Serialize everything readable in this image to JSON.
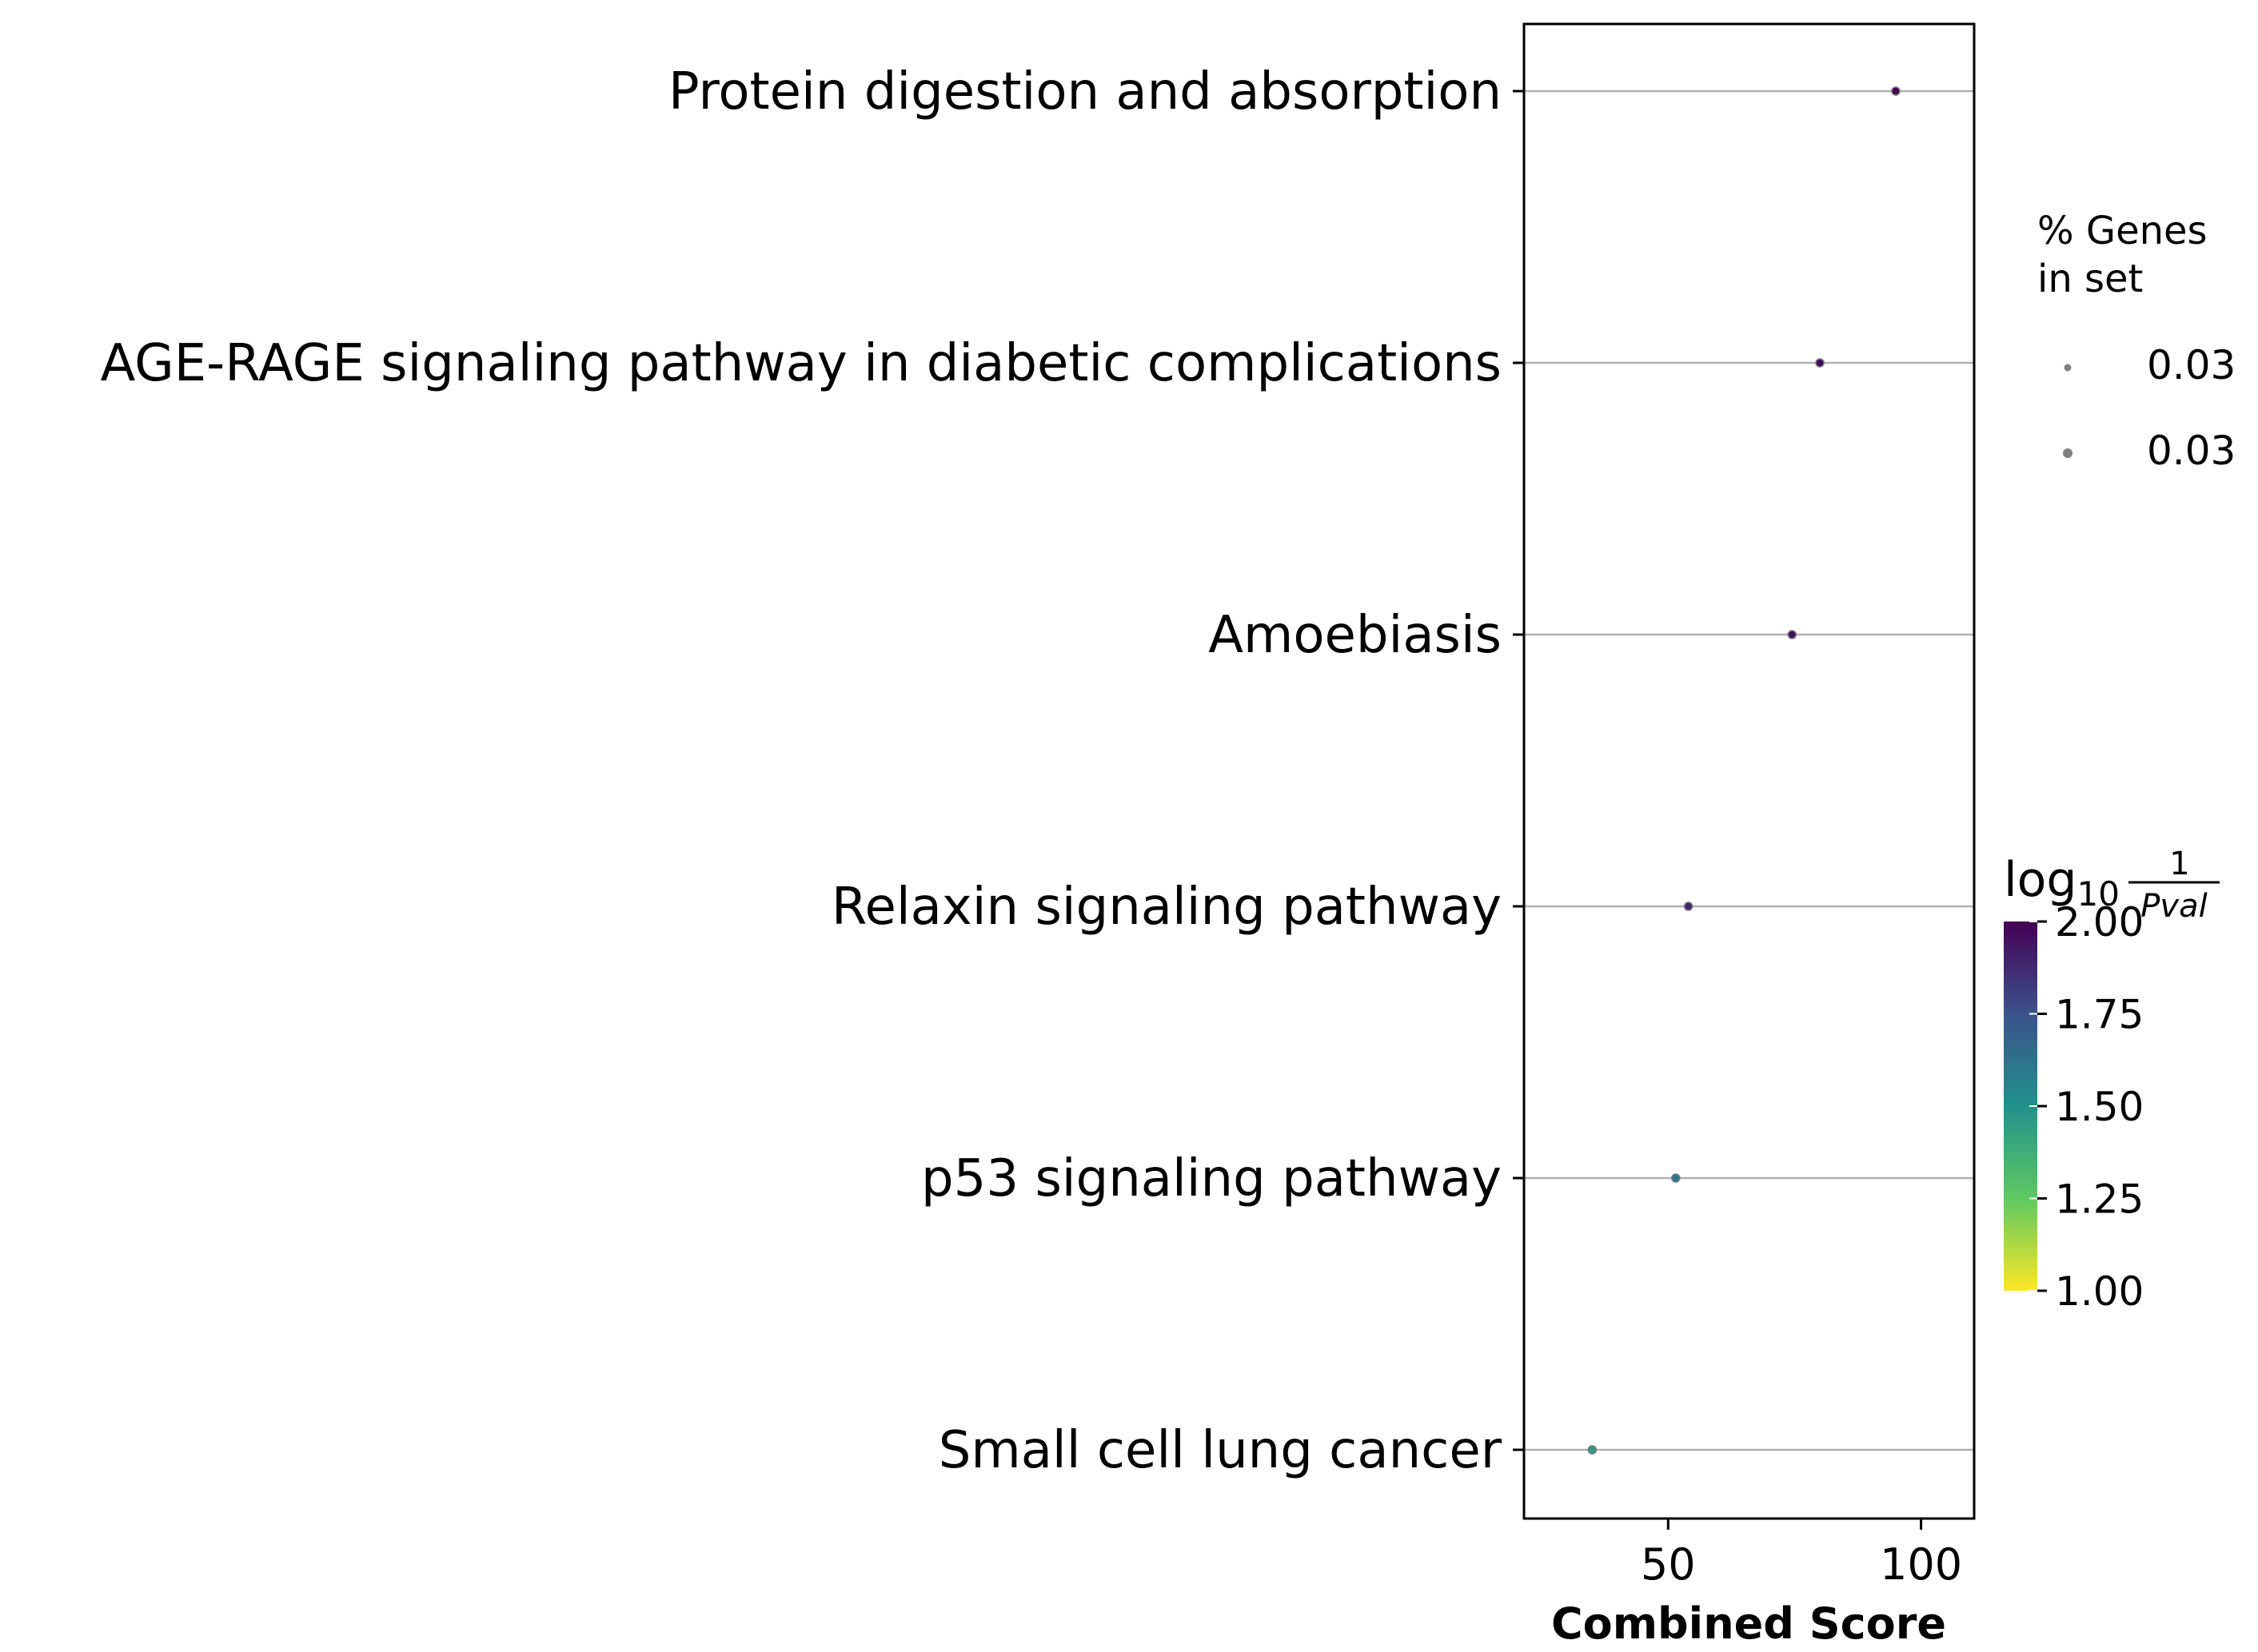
{
  "chart_data": {
    "type": "scatter",
    "title": "",
    "xlabel": "Combined Score",
    "ylabel": "",
    "xlim": [
      21.5,
      110.5
    ],
    "x_ticks": [
      50,
      100
    ],
    "x_tick_labels": [
      "50",
      "100"
    ],
    "grid": "horizontal lines at each category",
    "categories": [
      "Protein digestion and absorption",
      "AGE-RAGE signaling pathway in diabetic complications",
      "Amoebiasis",
      "Relaxin signaling pathway",
      "p53 signaling pathway",
      "Small cell lung cancer"
    ],
    "points": [
      {
        "term": "Protein digestion and absorption",
        "combined_score": 95,
        "neg_log10_pval": 2.0,
        "genes_in_set": 0.03
      },
      {
        "term": "AGE-RAGE signaling pathway in diabetic complications",
        "combined_score": 80,
        "neg_log10_pval": 1.97,
        "genes_in_set": 0.03
      },
      {
        "term": "Amoebiasis",
        "combined_score": 74.5,
        "neg_log10_pval": 1.95,
        "genes_in_set": 0.03
      },
      {
        "term": "Relaxin signaling pathway",
        "combined_score": 54,
        "neg_log10_pval": 1.88,
        "genes_in_set": 0.03
      },
      {
        "term": "p53 signaling pathway",
        "combined_score": 51.5,
        "neg_log10_pval": 1.6,
        "genes_in_set": 0.03
      },
      {
        "term": "Small cell lung cancer",
        "combined_score": 35,
        "neg_log10_pval": 1.45,
        "genes_in_set": 0.03
      }
    ],
    "size_legend": {
      "title_line1": "% Genes",
      "title_line2": "in set",
      "labels": [
        "0.03",
        "0.03"
      ]
    },
    "colorbar": {
      "title_log": "log",
      "title_sub": "10",
      "title_num": "1",
      "title_den": "Pval",
      "range": [
        1.0,
        2.0
      ],
      "ticks": [
        1.0,
        1.25,
        1.5,
        1.75,
        2.0
      ],
      "tick_labels": [
        "1.00",
        "1.25",
        "1.50",
        "1.75",
        "2.00"
      ],
      "colormap": "viridis (reversed: high = dark purple, low = yellow)",
      "colors": [
        "#fde725",
        "#5ec962",
        "#21918c",
        "#3b528b",
        "#440154"
      ]
    },
    "legend_position": "right"
  }
}
